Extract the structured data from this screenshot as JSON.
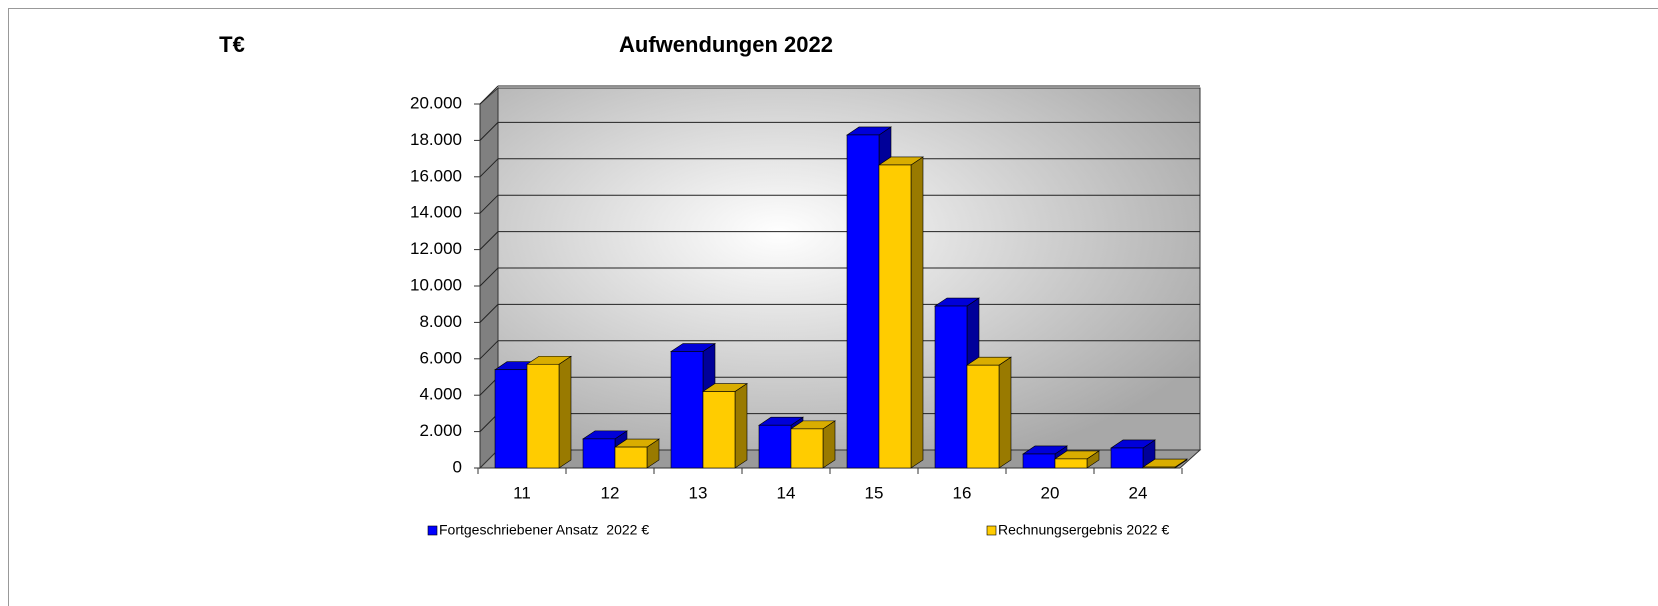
{
  "chart_data": {
    "type": "bar3d",
    "title": "Aufwendungen 2022",
    "unit_label": "T€",
    "categories": [
      "11",
      "12",
      "13",
      "14",
      "15",
      "16",
      "20",
      "24"
    ],
    "series": [
      {
        "name": "Fortgeschriebener Ansatz  2022 €",
        "color": "#0000ff",
        "values": [
          5400,
          1600,
          6400,
          2350,
          18300,
          8900,
          770,
          1100
        ]
      },
      {
        "name": "Rechnungsergebnis 2022 €",
        "color": "#ffcc00",
        "values": [
          5700,
          1150,
          4200,
          2150,
          16650,
          5650,
          500,
          50
        ]
      }
    ],
    "ylim": [
      0,
      20000
    ],
    "yticks": [
      0,
      {
        "value": 2000,
        "label": "2.000"
      },
      {
        "value": 4000,
        "label": "4.000"
      },
      {
        "value": 6000,
        "label": "6.000"
      },
      {
        "value": 8000,
        "label": "8.000"
      },
      {
        "value": 10000,
        "label": "10.000"
      },
      {
        "value": 12000,
        "label": "12.000"
      },
      {
        "value": 14000,
        "label": "14.000"
      },
      {
        "value": 16000,
        "label": "16.000"
      },
      {
        "value": 18000,
        "label": "18.000"
      },
      {
        "value": 20000,
        "label": "20.000"
      }
    ],
    "grid": true
  }
}
